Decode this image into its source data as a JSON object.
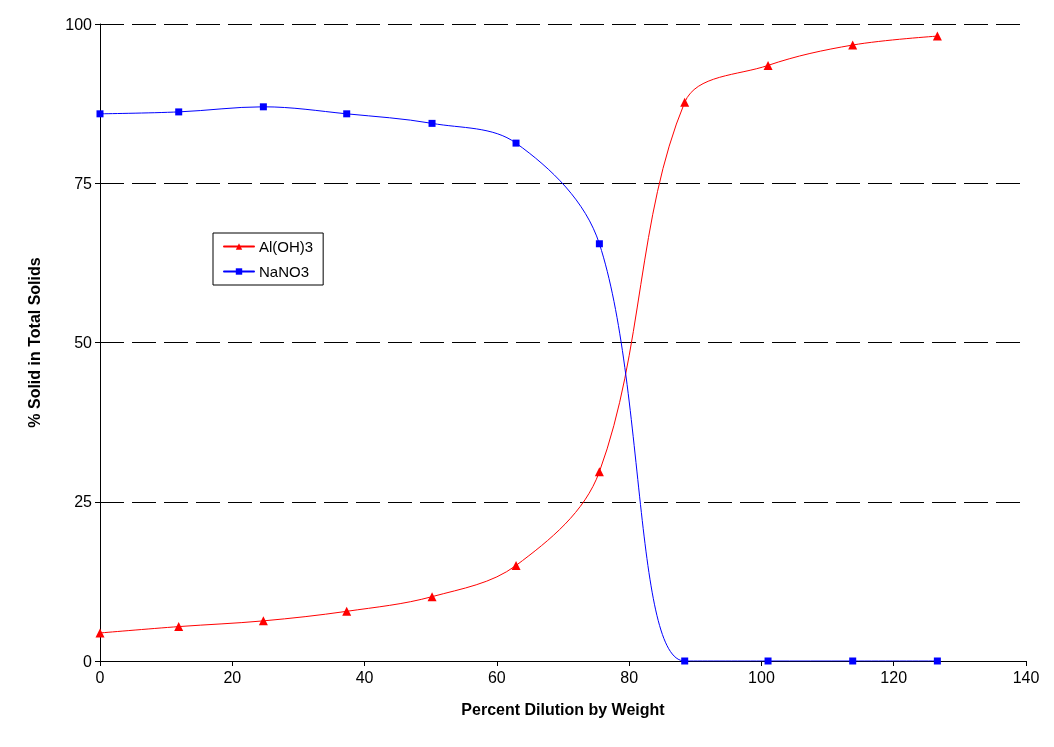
{
  "chart_data": {
    "type": "line",
    "xlabel": "Percent Dilution by Weight",
    "ylabel": "% Solid in Total Solids",
    "xlim": [
      0,
      140
    ],
    "xticks": [
      0,
      20,
      40,
      60,
      80,
      100,
      120,
      140
    ],
    "ylim": [
      0,
      100
    ],
    "yticks": [
      0,
      25,
      50,
      75,
      100
    ],
    "grid": "y",
    "legend": "left",
    "x": [
      0,
      11.9,
      24.7,
      37.3,
      50.2,
      62.9,
      75.5,
      88.4,
      101.0,
      113.8,
      126.6
    ],
    "series": [
      {
        "name": "Al(OH)3",
        "color": "#ff0000",
        "marker": "triangle",
        "values": [
          4.4,
          5.4,
          6.3,
          7.8,
          10.1,
          15.0,
          29.7,
          87.7,
          93.5,
          96.7,
          98.1
        ]
      },
      {
        "name": "NaNO3",
        "color": "#0000ff",
        "marker": "square",
        "values": [
          85.9,
          86.2,
          87.0,
          85.9,
          84.4,
          81.3,
          65.5,
          0,
          0,
          0,
          0
        ]
      }
    ]
  }
}
